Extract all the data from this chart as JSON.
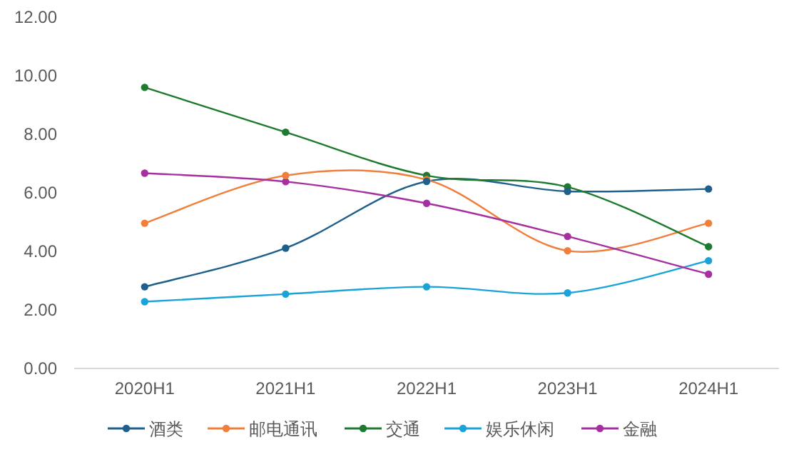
{
  "chart_data": {
    "type": "line",
    "categories": [
      "2020H1",
      "2021H1",
      "2022H1",
      "2023H1",
      "2024H1"
    ],
    "series": [
      {
        "name": "酒类",
        "color": "#1f5f8b",
        "values": [
          2.79,
          4.11,
          6.39,
          6.05,
          6.13
        ]
      },
      {
        "name": "邮电通讯",
        "color": "#f07f3c",
        "values": [
          4.96,
          6.59,
          6.45,
          4.02,
          4.96
        ]
      },
      {
        "name": "交通",
        "color": "#1e7a2e",
        "values": [
          9.6,
          8.07,
          6.59,
          6.2,
          4.16
        ]
      },
      {
        "name": "娱乐休闲",
        "color": "#1aa3d9",
        "values": [
          2.28,
          2.54,
          2.79,
          2.58,
          3.68
        ]
      },
      {
        "name": "金融",
        "color": "#a5309f",
        "values": [
          6.67,
          6.38,
          5.64,
          4.51,
          3.22
        ]
      }
    ],
    "ylim": [
      0,
      12
    ],
    "yticks": [
      {
        "value": 0,
        "label": "0.00"
      },
      {
        "value": 2,
        "label": "2.00"
      },
      {
        "value": 4,
        "label": "4.00"
      },
      {
        "value": 6,
        "label": "6.00"
      },
      {
        "value": 8,
        "label": "8.00"
      },
      {
        "value": 10,
        "label": "10.00"
      },
      {
        "value": 12,
        "label": "12.00"
      }
    ],
    "legend": "bottom",
    "marker": "circle",
    "line_style": "solid"
  }
}
